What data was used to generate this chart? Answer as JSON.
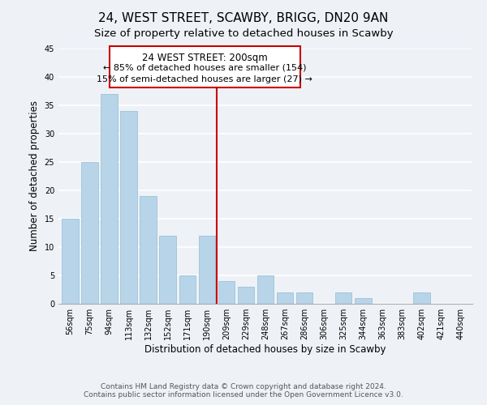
{
  "title": "24, WEST STREET, SCAWBY, BRIGG, DN20 9AN",
  "subtitle": "Size of property relative to detached houses in Scawby",
  "xlabel": "Distribution of detached houses by size in Scawby",
  "ylabel": "Number of detached properties",
  "categories": [
    "56sqm",
    "75sqm",
    "94sqm",
    "113sqm",
    "132sqm",
    "152sqm",
    "171sqm",
    "190sqm",
    "209sqm",
    "229sqm",
    "248sqm",
    "267sqm",
    "286sqm",
    "306sqm",
    "325sqm",
    "344sqm",
    "363sqm",
    "383sqm",
    "402sqm",
    "421sqm",
    "440sqm"
  ],
  "values": [
    15,
    25,
    37,
    34,
    19,
    12,
    5,
    12,
    4,
    3,
    5,
    2,
    2,
    0,
    2,
    1,
    0,
    0,
    2,
    0,
    0
  ],
  "bar_color": "#b8d4e8",
  "bar_edge_color": "#9dc3d8",
  "vline_x": 7.5,
  "vline_color": "#cc0000",
  "annotation_title": "24 WEST STREET: 200sqm",
  "annotation_line1": "← 85% of detached houses are smaller (154)",
  "annotation_line2": "15% of semi-detached houses are larger (27) →",
  "annotation_box_color": "#ffffff",
  "annotation_box_edge_color": "#cc0000",
  "ylim": [
    0,
    45
  ],
  "yticks": [
    0,
    5,
    10,
    15,
    20,
    25,
    30,
    35,
    40,
    45
  ],
  "footer_line1": "Contains HM Land Registry data © Crown copyright and database right 2024.",
  "footer_line2": "Contains public sector information licensed under the Open Government Licence v3.0.",
  "bg_color": "#eef2f7",
  "grid_color": "#ffffff",
  "title_fontsize": 11,
  "subtitle_fontsize": 9.5,
  "axis_label_fontsize": 8.5,
  "tick_fontsize": 7,
  "footer_fontsize": 6.5,
  "ann_title_fontsize": 8.5,
  "ann_text_fontsize": 8
}
